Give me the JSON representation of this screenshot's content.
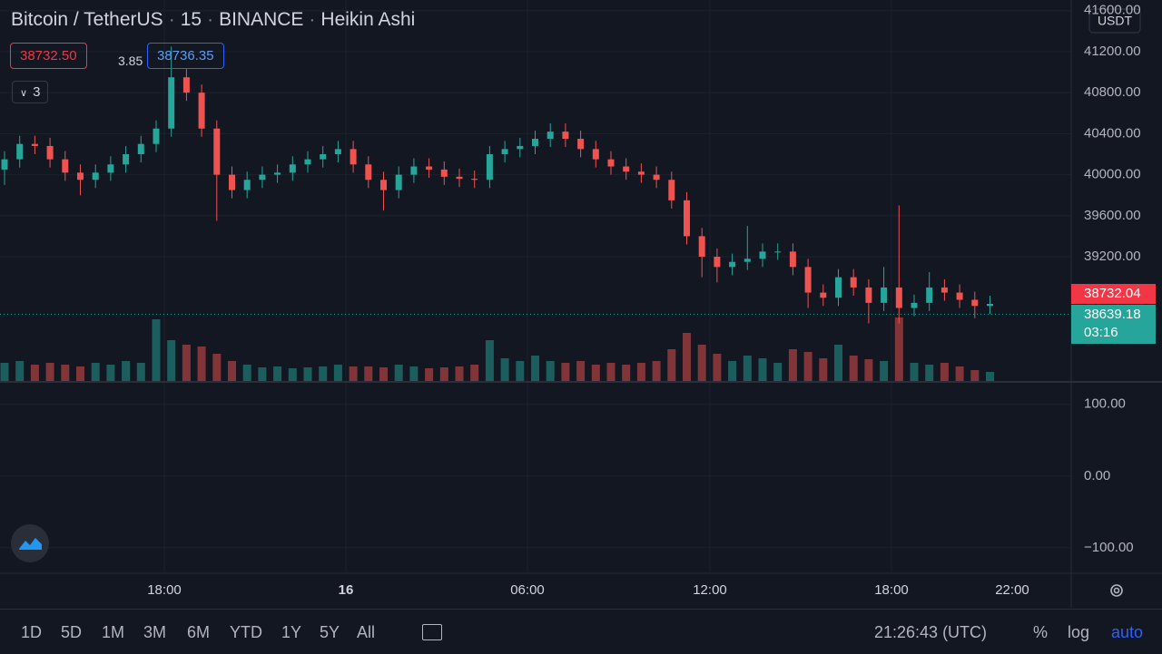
{
  "header": {
    "symbol": "Bitcoin / TetherUS",
    "interval": "15",
    "exchange": "BINANCE",
    "style": "Heikin Ashi"
  },
  "quote": {
    "bid": "38732.50",
    "spread": "3.85",
    "ask": "38736.35"
  },
  "indicators": "3",
  "chart_data": {
    "type": "candlestick",
    "currency": "USDT",
    "up_color": "#26a69a",
    "down_color": "#ef5350",
    "open": [
      40050,
      40150,
      40300,
      40280,
      40150,
      40020,
      39950,
      40020,
      40100,
      40200,
      40300,
      40450,
      40950,
      40800,
      40450,
      40000,
      39850,
      39950,
      40000,
      40020,
      40100,
      40150,
      40200,
      40250,
      40100,
      39950,
      39850,
      40000,
      40080,
      40050,
      39980,
      39960,
      39950,
      40200,
      40250,
      40280,
      40350,
      40420,
      40350,
      40250,
      40150,
      40080,
      40030,
      40000,
      39950,
      39750,
      39400,
      39200,
      39100,
      39150,
      39180,
      39250,
      39250,
      39100,
      38850,
      38800,
      39000,
      38900,
      38750,
      38900,
      38700,
      38750,
      38900,
      38850,
      38780,
      38720
    ],
    "high": [
      40230,
      40380,
      40380,
      40360,
      40230,
      40100,
      40100,
      40180,
      40280,
      40380,
      40530,
      41250,
      41030,
      40880,
      40530,
      40080,
      40030,
      40080,
      40100,
      40180,
      40230,
      40280,
      40330,
      40330,
      40180,
      40030,
      40080,
      40160,
      40160,
      40130,
      40060,
      40040,
      40280,
      40330,
      40360,
      40430,
      40500,
      40500,
      40430,
      40330,
      40230,
      40160,
      40110,
      40080,
      40030,
      39830,
      39480,
      39280,
      39230,
      39500,
      39330,
      39330,
      39330,
      39180,
      38930,
      39080,
      39080,
      38980,
      39100,
      39700,
      38830,
      39050,
      38980,
      38930,
      38860,
      38820
    ],
    "low": [
      39900,
      40070,
      40200,
      40070,
      39940,
      39800,
      39870,
      39940,
      40020,
      40120,
      40220,
      40370,
      40720,
      40370,
      39550,
      39770,
      39770,
      39870,
      39920,
      39940,
      40020,
      40070,
      40120,
      40020,
      39870,
      39650,
      39770,
      39920,
      39970,
      39900,
      39880,
      39870,
      39870,
      40120,
      40170,
      40200,
      40270,
      40270,
      40170,
      40070,
      40000,
      39950,
      39920,
      39870,
      39670,
      39320,
      39000,
      38950,
      39020,
      39070,
      39100,
      39170,
      39020,
      38700,
      38720,
      38720,
      38820,
      38550,
      38670,
      38550,
      38620,
      38670,
      38770,
      38700,
      38600,
      38640
    ],
    "close": [
      40150,
      40300,
      40280,
      40150,
      40020,
      39950,
      40020,
      40100,
      40200,
      40300,
      40450,
      40950,
      40800,
      40450,
      40000,
      39850,
      39950,
      40000,
      40020,
      40100,
      40150,
      40200,
      40250,
      40100,
      39950,
      39850,
      40000,
      40080,
      40050,
      39980,
      39960,
      39950,
      40200,
      40250,
      40280,
      40350,
      40420,
      40350,
      40250,
      40150,
      40080,
      40030,
      40000,
      39950,
      39750,
      39400,
      39200,
      39100,
      39150,
      39180,
      39250,
      39250,
      39100,
      38850,
      38800,
      39000,
      38900,
      38750,
      38900,
      38700,
      38750,
      38900,
      38850,
      38780,
      38720,
      38740
    ],
    "volume": [
      20,
      22,
      18,
      20,
      18,
      16,
      20,
      18,
      22,
      20,
      68,
      45,
      40,
      38,
      30,
      22,
      18,
      15,
      16,
      14,
      15,
      16,
      18,
      16,
      16,
      15,
      18,
      16,
      14,
      15,
      16,
      18,
      45,
      25,
      22,
      28,
      22,
      20,
      22,
      18,
      20,
      18,
      20,
      22,
      35,
      53,
      40,
      30,
      22,
      28,
      25,
      20,
      35,
      32,
      25,
      40,
      28,
      24,
      22,
      70,
      20,
      18,
      20,
      16,
      12,
      10
    ],
    "ylim": [
      37988,
      41704
    ],
    "yticks": [
      {
        "value": 41600,
        "label": "41600.00"
      },
      {
        "value": 41200,
        "label": "41200.00"
      },
      {
        "value": 40800,
        "label": "40800.00"
      },
      {
        "value": 40400,
        "label": "40400.00"
      },
      {
        "value": 40000,
        "label": "40000.00"
      },
      {
        "value": 39600,
        "label": "39600.00"
      },
      {
        "value": 39200,
        "label": "39200.00"
      }
    ],
    "mark_price": 38732.04,
    "last_price": 38639.18,
    "countdown": "03:16",
    "time_labels": [
      "18:00",
      "16",
      "06:00",
      "12:00",
      "18:00",
      "22:00"
    ],
    "y2lim": [
      -133,
      130
    ],
    "y2ticks": [
      {
        "value": 100,
        "label": "100.00"
      },
      {
        "value": 0,
        "label": "0.00"
      },
      {
        "value": -100,
        "label": "−100.00"
      }
    ],
    "grid": true
  },
  "toolbar": {
    "ranges": [
      "1D",
      "5D",
      "1M",
      "3M",
      "6M",
      "YTD",
      "1Y",
      "5Y",
      "All"
    ],
    "clock": "21:26:43 (UTC)",
    "options": [
      "%",
      "log",
      "auto"
    ]
  }
}
